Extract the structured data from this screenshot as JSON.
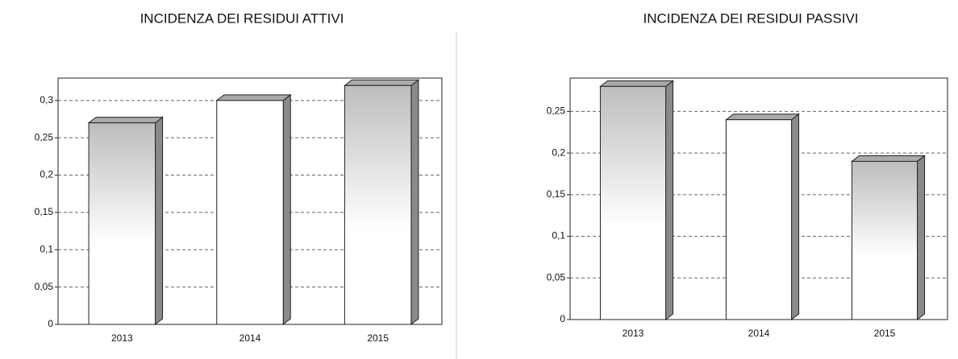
{
  "chart_data": [
    {
      "type": "bar",
      "title": "INCIDENZA DEI RESIDUI ATTIVI",
      "categories": [
        "2013",
        "2014",
        "2015"
      ],
      "values": [
        0.27,
        0.3,
        0.32
      ],
      "ylim": [
        0,
        0.33
      ],
      "yticks": [
        0,
        {
          "value": 0.05,
          "label": "0,05"
        },
        {
          "value": 0.1,
          "label": "0,1"
        },
        {
          "value": 0.15,
          "label": "0,15"
        },
        {
          "value": 0.2,
          "label": "0,2"
        },
        {
          "value": 0.25,
          "label": "0,25"
        },
        {
          "value": 0.3,
          "label": "0,3"
        }
      ],
      "grid": true
    },
    {
      "type": "bar",
      "title": "INCIDENZA DEI RESIDUI PASSIVI",
      "categories": [
        "2013",
        "2014",
        "2015"
      ],
      "values": [
        0.28,
        0.24,
        0.19
      ],
      "ylim": [
        0,
        0.29
      ],
      "yticks": [
        0,
        {
          "value": 0.05,
          "label": "0,05"
        },
        {
          "value": 0.1,
          "label": "0,1"
        },
        {
          "value": 0.15,
          "label": "0,15"
        },
        {
          "value": 0.2,
          "label": "0,2"
        },
        {
          "value": 0.25,
          "label": "0,25"
        }
      ],
      "grid": true
    }
  ]
}
